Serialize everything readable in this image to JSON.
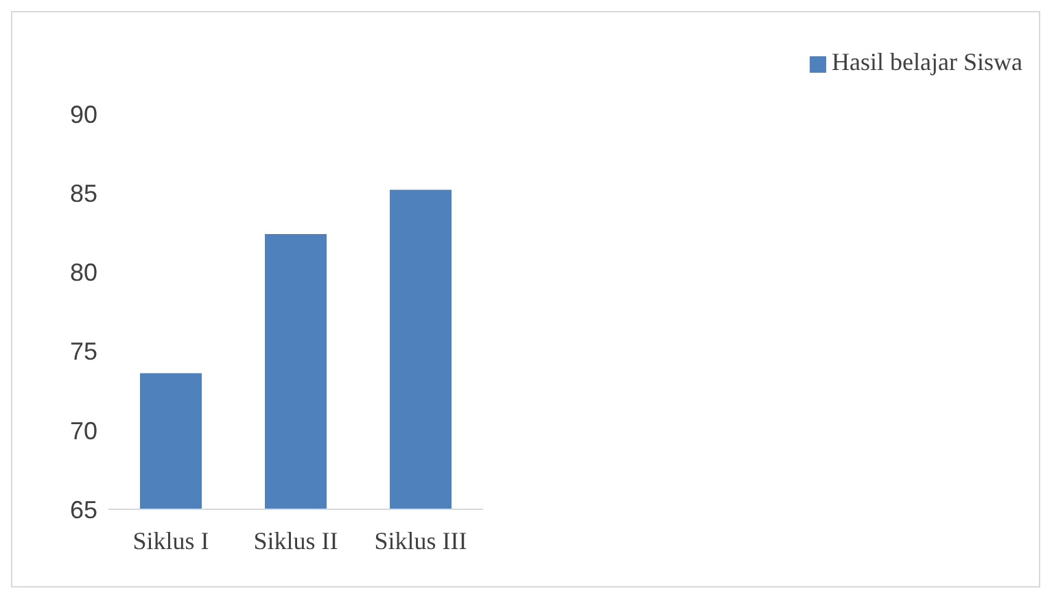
{
  "chart_data": {
    "type": "bar",
    "categories": [
      "Siklus I",
      "Siklus II",
      "Siklus III"
    ],
    "series": [
      {
        "name": "Hasil belajar Siswa",
        "color": "#4f81bd",
        "values": [
          73.6,
          82.4,
          85.2
        ]
      }
    ],
    "ylim": [
      65,
      90
    ],
    "yticks": [
      65,
      70,
      75,
      80,
      85,
      90
    ],
    "grid": false,
    "legend": "top right"
  }
}
